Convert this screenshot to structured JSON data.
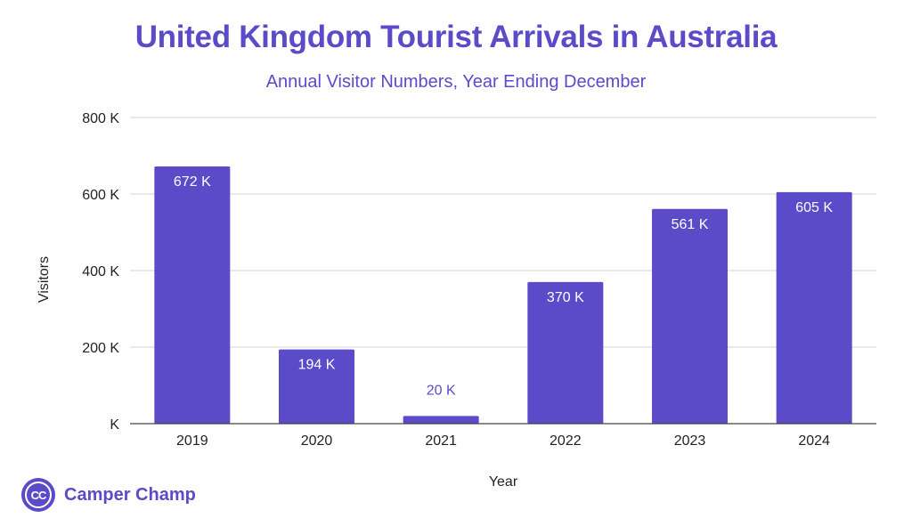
{
  "chart_data": {
    "type": "bar",
    "title": "United Kingdom Tourist Arrivals in Australia",
    "subtitle": "Annual Visitor Numbers, Year Ending December",
    "xlabel": "Year",
    "ylabel": "Visitors",
    "categories": [
      "2019",
      "2020",
      "2021",
      "2022",
      "2023",
      "2024"
    ],
    "values": [
      672000,
      194000,
      20000,
      370000,
      561000,
      605000
    ],
    "data_labels": [
      "672 K",
      "194 K",
      "20 K",
      "370 K",
      "561 K",
      "605 K"
    ],
    "ylim": [
      0,
      800000
    ],
    "yticks": [
      0,
      200000,
      400000,
      600000,
      800000
    ],
    "ytick_labels": [
      "K",
      "200 K",
      "400 K",
      "600 K",
      "800 K"
    ],
    "grid": true,
    "legend": "none"
  },
  "colors": {
    "bar": "#5B4BC9",
    "title": "#5B4BC9",
    "subtitle": "#5B4BC9",
    "grid": "#d3d3d3",
    "axis": "#444444",
    "text": "#222222",
    "brand": "#5B4BC9"
  },
  "brand": {
    "logo_text": "CC",
    "name": "Camper Champ"
  }
}
